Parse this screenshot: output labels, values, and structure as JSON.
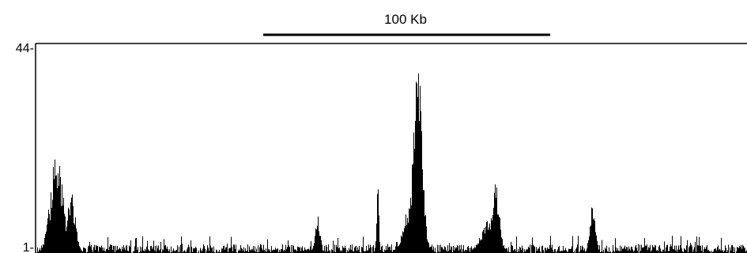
{
  "scale_bar": {
    "label": "100 Kb"
  },
  "colors": {
    "signal": "#000000",
    "frame": "#000000",
    "background": "#ffffff"
  },
  "chart_data": {
    "type": "area",
    "title": "",
    "xlabel": "",
    "ylabel": "",
    "ylim": [
      1,
      44
    ],
    "y_tick_labels": [
      "44-",
      "1-"
    ],
    "grid": false,
    "legend": "none",
    "scale_bar_kb": 100,
    "x_unit": "kb",
    "xlim": [
      0,
      248
    ],
    "baseline_noise_max": 4,
    "peaks": [
      {
        "center": 7,
        "width": 2.2,
        "height": 22,
        "label": ""
      },
      {
        "center": 12,
        "width": 1.5,
        "height": 14,
        "label": ""
      },
      {
        "center": 98,
        "width": 0.9,
        "height": 9,
        "label": ""
      },
      {
        "center": 119,
        "width": 0.4,
        "height": 17,
        "label": ""
      },
      {
        "center": 133,
        "width": 1.6,
        "height": 41,
        "label": ""
      },
      {
        "center": 131,
        "width": 2.5,
        "height": 13,
        "label": ""
      },
      {
        "center": 160,
        "width": 1.4,
        "height": 16,
        "label": ""
      },
      {
        "center": 158,
        "width": 2.8,
        "height": 8,
        "label": ""
      },
      {
        "center": 194,
        "width": 1.0,
        "height": 12,
        "label": ""
      }
    ]
  }
}
